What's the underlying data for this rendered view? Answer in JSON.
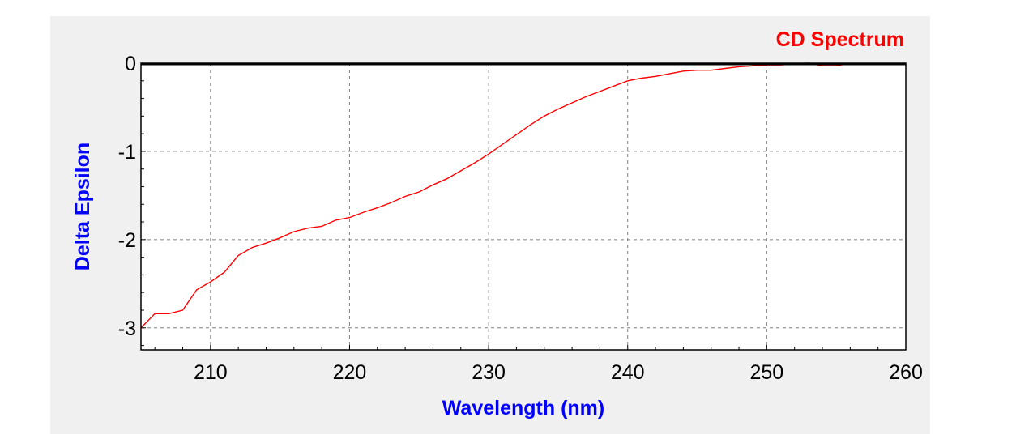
{
  "chart_data": {
    "type": "line",
    "title": "CD Spectrum",
    "xlabel": "Wavelength (nm)",
    "ylabel": "Delta Epsilon",
    "xlim": [
      205,
      260
    ],
    "ylim": [
      -3.25,
      0
    ],
    "x_ticks": [
      210,
      220,
      230,
      240,
      250,
      260
    ],
    "y_ticks": [
      0,
      -1,
      -2,
      -3
    ],
    "x_tick_labels": [
      "210",
      "220",
      "230",
      "240",
      "250",
      "260"
    ],
    "y_tick_labels": [
      "0",
      "-1",
      "-2",
      "-3"
    ],
    "grid": true,
    "legend": "none",
    "colors": {
      "line": "#ff0000",
      "title": "#ff0000",
      "axis_title": "#0000ff",
      "grid": "#808080",
      "plot_bg": "#ffffff",
      "panel_bg": "#f0f0f0"
    },
    "series": [
      {
        "x": [
          205,
          206,
          207,
          208,
          209,
          210,
          211,
          212,
          213,
          214,
          215,
          216,
          217,
          218,
          219,
          220,
          221,
          222,
          223,
          224,
          225,
          226,
          227,
          228,
          229,
          230,
          231,
          232,
          233,
          234,
          235,
          236,
          237,
          238,
          239,
          240,
          241,
          242,
          243,
          244,
          245,
          246,
          247,
          248,
          249,
          250,
          251,
          252,
          253,
          254,
          255,
          256
        ],
        "y": [
          -3.0,
          -2.84,
          -2.84,
          -2.8,
          -2.57,
          -2.48,
          -2.37,
          -2.18,
          -2.09,
          -2.04,
          -1.98,
          -1.91,
          -1.87,
          -1.85,
          -1.78,
          -1.75,
          -1.69,
          -1.64,
          -1.58,
          -1.51,
          -1.46,
          -1.38,
          -1.31,
          -1.22,
          -1.13,
          -1.03,
          -0.92,
          -0.81,
          -0.7,
          -0.6,
          -0.52,
          -0.45,
          -0.38,
          -0.32,
          -0.26,
          -0.2,
          -0.17,
          -0.15,
          -0.12,
          -0.09,
          -0.08,
          -0.08,
          -0.06,
          -0.04,
          -0.03,
          -0.02,
          -0.02,
          -0.01,
          0,
          -0.03,
          -0.03,
          0
        ]
      }
    ]
  }
}
